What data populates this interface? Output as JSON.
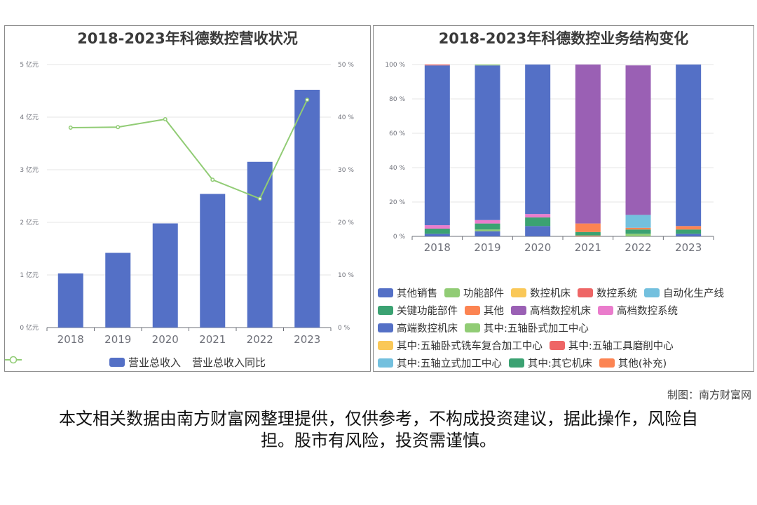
{
  "left_panel": {
    "title": "2018-2023年科德数控营收状况",
    "legend": [
      "营业总收入",
      "营业总收入同比"
    ]
  },
  "right_panel": {
    "title": "2018-2023年科德数控业务结构变化",
    "legend": [
      {
        "name": "其他销售",
        "color": "#5470c6"
      },
      {
        "name": "功能部件",
        "color": "#91cc75"
      },
      {
        "name": "数控机床",
        "color": "#fac858"
      },
      {
        "name": "数控系统",
        "color": "#ee6666"
      },
      {
        "name": "自动化生产线",
        "color": "#73c0de"
      },
      {
        "name": "关键功能部件",
        "color": "#3ba272"
      },
      {
        "name": "其他",
        "color": "#fc8452"
      },
      {
        "name": "高档数控机床",
        "color": "#9a60b4"
      },
      {
        "name": "高档数控系统",
        "color": "#ea7ccc"
      },
      {
        "name": "高端数控机床",
        "color": "#5470c6"
      },
      {
        "name": "其中:五轴卧式加工中心",
        "color": "#91cc75"
      },
      {
        "name": "其中:五轴卧式铣车复合加工中心",
        "color": "#fac858"
      },
      {
        "name": "其中:五轴工具磨削中心",
        "color": "#ee6666"
      },
      {
        "name": "其中:五轴立式加工中心",
        "color": "#73c0de"
      },
      {
        "name": "其中:其它机床",
        "color": "#3ba272"
      },
      {
        "name": "其他(补充)",
        "color": "#fc8452"
      }
    ]
  },
  "chart_data": [
    {
      "type": "bar",
      "title": "2018-2023年科德数控营收状况",
      "categories": [
        "2018",
        "2019",
        "2020",
        "2021",
        "2022",
        "2023"
      ],
      "series": [
        {
          "name": "营业总收入",
          "type": "bar",
          "axis": "left",
          "color": "#5470c6",
          "values": [
            1.03,
            1.42,
            1.98,
            2.54,
            3.15,
            4.52
          ]
        },
        {
          "name": "营业总收入同比",
          "type": "line",
          "axis": "right",
          "color": "#91cc75",
          "values": [
            38.0,
            38.1,
            39.6,
            28.1,
            24.5,
            43.3
          ]
        }
      ],
      "y_left": {
        "min": 0,
        "max": 5,
        "ticks": [
          "0 亿元",
          "1 亿元",
          "2 亿元",
          "3 亿元",
          "4 亿元",
          "5 亿元"
        ]
      },
      "y_right": {
        "min": 0,
        "max": 50,
        "ticks": [
          "0 %",
          "10 %",
          "20 %",
          "30 %",
          "40 %",
          "50 %"
        ]
      },
      "grid": true,
      "legend_position": "bottom"
    },
    {
      "type": "bar",
      "stacked": true,
      "title": "2018-2023年科德数控业务结构变化",
      "categories": [
        "2018",
        "2019",
        "2020",
        "2021",
        "2022",
        "2023"
      ],
      "y": {
        "min": 0,
        "max": 100,
        "ticks": [
          "0 %",
          "20 %",
          "40 %",
          "60 %",
          "80 %",
          "100 %"
        ]
      },
      "series": [
        {
          "name": "关键功能部件",
          "color": "#3ba272",
          "values": [
            3.0,
            3.5,
            5.0,
            2.0,
            2.5,
            2.5
          ]
        },
        {
          "name": "其他",
          "color": "#fc8452",
          "values": [
            0,
            0,
            0,
            5.0,
            1.0,
            2.0
          ]
        },
        {
          "name": "高档数控系统",
          "color": "#ea7ccc",
          "values": [
            2.0,
            2.0,
            2.0,
            0,
            0,
            0
          ]
        },
        {
          "name": "自动化生产线",
          "color": "#73c0de",
          "values": [
            0,
            0,
            0,
            0,
            7.5,
            0
          ]
        },
        {
          "name": "高档数控机床",
          "color": "#9a60b4",
          "values": [
            0,
            0,
            0,
            92.5,
            87.0,
            0
          ]
        },
        {
          "name": "高端数控机床",
          "color": "#5470c6",
          "values": [
            93.0,
            90.0,
            87.0,
            0,
            0,
            94.0
          ]
        },
        {
          "name": "功能部件",
          "color": "#91cc75",
          "values": [
            0,
            0.5,
            0,
            0,
            0,
            0
          ]
        },
        {
          "name": "数控系统",
          "color": "#ee6666",
          "values": [
            0.5,
            0,
            0,
            0,
            0,
            0
          ]
        }
      ],
      "bottom_segments": [
        {
          "color": "#5470c6",
          "values": [
            1.5,
            3.0,
            6.0,
            0,
            0,
            1.5
          ]
        },
        {
          "color": "#91cc75",
          "values": [
            0,
            1.0,
            0,
            0,
            1.5,
            0
          ]
        },
        {
          "color": "#fc8452",
          "values": [
            0,
            0,
            0,
            0.5,
            0,
            0
          ]
        }
      ],
      "legend_position": "bottom"
    }
  ],
  "credit": "制图：南方财富网",
  "disclaimer": "本文相关数据由南方财富网整理提供，仅供参考，不构成投资建议，据此操作，风险自担。股市有风险，投资需谨慎。"
}
